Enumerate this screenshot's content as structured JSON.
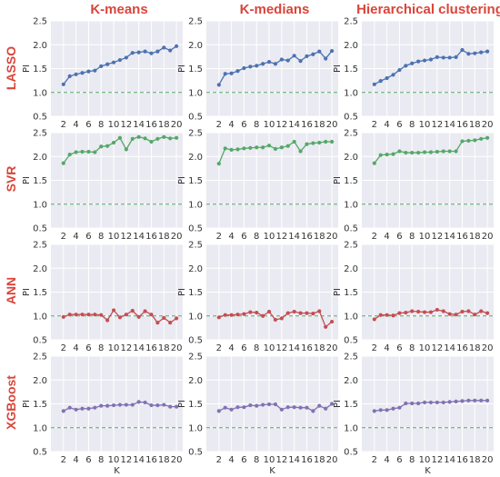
{
  "figure": {
    "columns": [
      "K-means",
      "K-medians",
      "Hierarchical clustering"
    ],
    "rows": [
      "LASSO",
      "SVR",
      "ANN",
      "XGBoost"
    ],
    "xlabel": "K",
    "ylabel": "PI"
  },
  "colors": {
    "title": "#d9453a",
    "panel_bg": "#eaeaf2",
    "grid": "#ffffff",
    "reference_line": "#55a868",
    "LASSO": "#4c72b0",
    "SVR": "#55a868",
    "ANN": "#c44e52",
    "XGBoost": "#8172b2"
  },
  "chart_data": [
    {
      "type": "line",
      "row": "LASSO",
      "column": "K-means",
      "x": [
        2,
        3,
        4,
        5,
        6,
        7,
        8,
        9,
        10,
        11,
        12,
        13,
        14,
        15,
        16,
        17,
        18,
        19,
        20
      ],
      "values": [
        1.17,
        1.34,
        1.38,
        1.41,
        1.44,
        1.46,
        1.55,
        1.59,
        1.63,
        1.68,
        1.73,
        1.83,
        1.84,
        1.86,
        1.82,
        1.86,
        1.94,
        1.88,
        1.97
      ],
      "reference_y": 1.0,
      "xlim": [
        0,
        21
      ],
      "ylim": [
        0.5,
        2.5
      ],
      "xticks": [
        2,
        4,
        6,
        8,
        10,
        12,
        14,
        16,
        18,
        20
      ],
      "yticks": [
        0.5,
        1.0,
        1.5,
        2.0,
        2.5
      ],
      "grid": true
    },
    {
      "type": "line",
      "row": "LASSO",
      "column": "K-medians",
      "x": [
        2,
        3,
        4,
        5,
        6,
        7,
        8,
        9,
        10,
        11,
        12,
        13,
        14,
        15,
        16,
        17,
        18,
        19,
        20
      ],
      "values": [
        1.16,
        1.39,
        1.4,
        1.45,
        1.51,
        1.54,
        1.56,
        1.6,
        1.64,
        1.6,
        1.69,
        1.67,
        1.77,
        1.66,
        1.76,
        1.8,
        1.86,
        1.71,
        1.87
      ],
      "reference_y": 1.0,
      "xlim": [
        0,
        21
      ],
      "ylim": [
        0.5,
        2.5
      ],
      "xticks": [
        2,
        4,
        6,
        8,
        10,
        12,
        14,
        16,
        18,
        20
      ],
      "yticks": [
        0.5,
        1.0,
        1.5,
        2.0,
        2.5
      ],
      "grid": true
    },
    {
      "type": "line",
      "row": "LASSO",
      "column": "Hierarchical clustering",
      "x": [
        2,
        3,
        4,
        5,
        6,
        7,
        8,
        9,
        10,
        11,
        12,
        13,
        14,
        15,
        16,
        17,
        18,
        19,
        20
      ],
      "values": [
        1.17,
        1.24,
        1.3,
        1.37,
        1.47,
        1.56,
        1.61,
        1.65,
        1.67,
        1.69,
        1.74,
        1.73,
        1.73,
        1.74,
        1.89,
        1.81,
        1.82,
        1.84,
        1.86
      ],
      "reference_y": 1.0,
      "xlim": [
        0,
        21
      ],
      "ylim": [
        0.5,
        2.5
      ],
      "xticks": [
        2,
        4,
        6,
        8,
        10,
        12,
        14,
        16,
        18,
        20
      ],
      "yticks": [
        0.5,
        1.0,
        1.5,
        2.0,
        2.5
      ],
      "grid": true
    },
    {
      "type": "line",
      "row": "SVR",
      "column": "K-means",
      "x": [
        2,
        3,
        4,
        5,
        6,
        7,
        8,
        9,
        10,
        11,
        12,
        13,
        14,
        15,
        16,
        17,
        18,
        19,
        20
      ],
      "values": [
        1.86,
        2.04,
        2.09,
        2.1,
        2.1,
        2.09,
        2.21,
        2.22,
        2.29,
        2.39,
        2.15,
        2.37,
        2.41,
        2.38,
        2.31,
        2.37,
        2.41,
        2.38,
        2.39
      ],
      "reference_y": 1.0,
      "xlim": [
        0,
        21
      ],
      "ylim": [
        0.5,
        2.5
      ],
      "xticks": [
        2,
        4,
        6,
        8,
        10,
        12,
        14,
        16,
        18,
        20
      ],
      "yticks": [
        0.5,
        1.0,
        1.5,
        2.0,
        2.5
      ],
      "grid": true
    },
    {
      "type": "line",
      "row": "SVR",
      "column": "K-medians",
      "x": [
        2,
        3,
        4,
        5,
        6,
        7,
        8,
        9,
        10,
        11,
        12,
        13,
        14,
        15,
        16,
        17,
        18,
        19,
        20
      ],
      "values": [
        1.85,
        2.17,
        2.14,
        2.15,
        2.17,
        2.18,
        2.19,
        2.19,
        2.23,
        2.16,
        2.19,
        2.22,
        2.31,
        2.11,
        2.26,
        2.28,
        2.29,
        2.31,
        2.31
      ],
      "reference_y": 1.0,
      "xlim": [
        0,
        21
      ],
      "ylim": [
        0.5,
        2.5
      ],
      "xticks": [
        2,
        4,
        6,
        8,
        10,
        12,
        14,
        16,
        18,
        20
      ],
      "yticks": [
        0.5,
        1.0,
        1.5,
        2.0,
        2.5
      ],
      "grid": true
    },
    {
      "type": "line",
      "row": "SVR",
      "column": "Hierarchical clustering",
      "x": [
        2,
        3,
        4,
        5,
        6,
        7,
        8,
        9,
        10,
        11,
        12,
        13,
        14,
        15,
        16,
        17,
        18,
        19,
        20
      ],
      "values": [
        1.86,
        2.03,
        2.04,
        2.05,
        2.11,
        2.08,
        2.08,
        2.08,
        2.09,
        2.09,
        2.1,
        2.11,
        2.11,
        2.11,
        2.32,
        2.33,
        2.34,
        2.37,
        2.39
      ],
      "reference_y": 1.0,
      "xlim": [
        0,
        21
      ],
      "ylim": [
        0.5,
        2.5
      ],
      "xticks": [
        2,
        4,
        6,
        8,
        10,
        12,
        14,
        16,
        18,
        20
      ],
      "yticks": [
        0.5,
        1.0,
        1.5,
        2.0,
        2.5
      ],
      "grid": true
    },
    {
      "type": "line",
      "row": "ANN",
      "column": "K-means",
      "x": [
        2,
        3,
        4,
        5,
        6,
        7,
        8,
        9,
        10,
        11,
        12,
        13,
        14,
        15,
        16,
        17,
        18,
        19,
        20
      ],
      "values": [
        0.98,
        1.03,
        1.03,
        1.03,
        1.03,
        1.03,
        1.02,
        0.91,
        1.12,
        0.97,
        1.03,
        1.11,
        0.98,
        1.1,
        1.03,
        0.86,
        0.96,
        0.86,
        0.95
      ],
      "reference_y": 1.0,
      "xlim": [
        0,
        21
      ],
      "ylim": [
        0.5,
        2.5
      ],
      "xticks": [
        2,
        4,
        6,
        8,
        10,
        12,
        14,
        16,
        18,
        20
      ],
      "yticks": [
        0.5,
        1.0,
        1.5,
        2.0,
        2.5
      ],
      "grid": true
    },
    {
      "type": "line",
      "row": "ANN",
      "column": "K-medians",
      "x": [
        2,
        3,
        4,
        5,
        6,
        7,
        8,
        9,
        10,
        11,
        12,
        13,
        14,
        15,
        16,
        17,
        18,
        19,
        20
      ],
      "values": [
        0.97,
        1.02,
        1.02,
        1.03,
        1.04,
        1.08,
        1.07,
        1.0,
        1.09,
        0.92,
        0.95,
        1.06,
        1.09,
        1.06,
        1.06,
        1.05,
        1.1,
        0.77,
        0.88
      ],
      "reference_y": 1.0,
      "xlim": [
        0,
        21
      ],
      "ylim": [
        0.5,
        2.5
      ],
      "xticks": [
        2,
        4,
        6,
        8,
        10,
        12,
        14,
        16,
        18,
        20
      ],
      "yticks": [
        0.5,
        1.0,
        1.5,
        2.0,
        2.5
      ],
      "grid": true
    },
    {
      "type": "line",
      "row": "ANN",
      "column": "Hierarchical clustering",
      "x": [
        2,
        3,
        4,
        5,
        6,
        7,
        8,
        9,
        10,
        11,
        12,
        13,
        14,
        15,
        16,
        17,
        18,
        19,
        20
      ],
      "values": [
        0.93,
        1.02,
        1.02,
        1.01,
        1.06,
        1.07,
        1.1,
        1.09,
        1.08,
        1.08,
        1.13,
        1.1,
        1.04,
        1.03,
        1.09,
        1.1,
        1.03,
        1.1,
        1.06
      ],
      "reference_y": 1.0,
      "xlim": [
        0,
        21
      ],
      "ylim": [
        0.5,
        2.5
      ],
      "xticks": [
        2,
        4,
        6,
        8,
        10,
        12,
        14,
        16,
        18,
        20
      ],
      "yticks": [
        0.5,
        1.0,
        1.5,
        2.0,
        2.5
      ],
      "grid": true
    },
    {
      "type": "line",
      "row": "XGBoost",
      "column": "K-means",
      "x": [
        2,
        3,
        4,
        5,
        6,
        7,
        8,
        9,
        10,
        11,
        12,
        13,
        14,
        15,
        16,
        17,
        18,
        19,
        20
      ],
      "values": [
        1.35,
        1.42,
        1.38,
        1.4,
        1.4,
        1.42,
        1.46,
        1.46,
        1.47,
        1.48,
        1.48,
        1.48,
        1.54,
        1.53,
        1.47,
        1.47,
        1.48,
        1.44,
        1.44
      ],
      "reference_y": 1.0,
      "xlim": [
        0,
        21
      ],
      "ylim": [
        0.5,
        2.5
      ],
      "xticks": [
        2,
        4,
        6,
        8,
        10,
        12,
        14,
        16,
        18,
        20
      ],
      "yticks": [
        0.5,
        1.0,
        1.5,
        2.0,
        2.5
      ],
      "grid": true
    },
    {
      "type": "line",
      "row": "XGBoost",
      "column": "K-medians",
      "x": [
        2,
        3,
        4,
        5,
        6,
        7,
        8,
        9,
        10,
        11,
        12,
        13,
        14,
        15,
        16,
        17,
        18,
        19,
        20
      ],
      "values": [
        1.35,
        1.42,
        1.38,
        1.43,
        1.43,
        1.47,
        1.46,
        1.48,
        1.49,
        1.49,
        1.38,
        1.43,
        1.43,
        1.42,
        1.42,
        1.35,
        1.46,
        1.4,
        1.5
      ],
      "reference_y": 1.0,
      "xlim": [
        0,
        21
      ],
      "ylim": [
        0.5,
        2.5
      ],
      "xticks": [
        2,
        4,
        6,
        8,
        10,
        12,
        14,
        16,
        18,
        20
      ],
      "yticks": [
        0.5,
        1.0,
        1.5,
        2.0,
        2.5
      ],
      "grid": true
    },
    {
      "type": "line",
      "row": "XGBoost",
      "column": "Hierarchical clustering",
      "x": [
        2,
        3,
        4,
        5,
        6,
        7,
        8,
        9,
        10,
        11,
        12,
        13,
        14,
        15,
        16,
        17,
        18,
        19,
        20
      ],
      "values": [
        1.35,
        1.37,
        1.37,
        1.4,
        1.42,
        1.51,
        1.51,
        1.51,
        1.53,
        1.53,
        1.53,
        1.53,
        1.54,
        1.55,
        1.56,
        1.57,
        1.57,
        1.57,
        1.57
      ],
      "reference_y": 1.0,
      "xlim": [
        0,
        21
      ],
      "ylim": [
        0.5,
        2.5
      ],
      "xticks": [
        2,
        4,
        6,
        8,
        10,
        12,
        14,
        16,
        18,
        20
      ],
      "yticks": [
        0.5,
        1.0,
        1.5,
        2.0,
        2.5
      ],
      "grid": true
    }
  ]
}
